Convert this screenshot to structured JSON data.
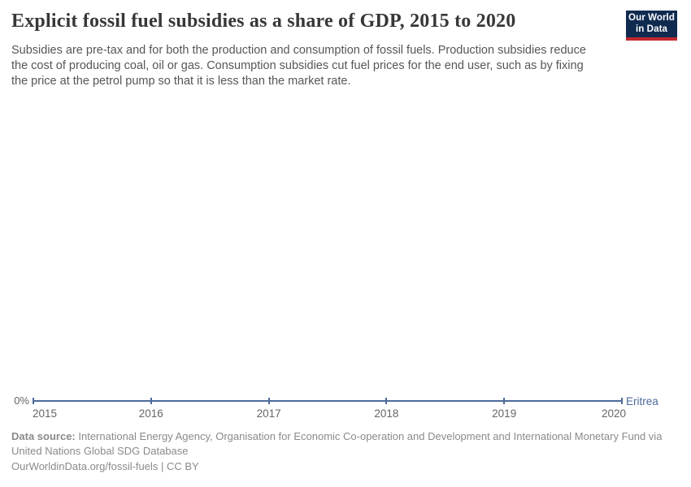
{
  "header": {
    "title": "Explicit fossil fuel subsidies as a share of GDP, 2015 to 2020",
    "subtitle_lines": [
      "Subsidies are pre-tax and for both the production and consumption of fossil fuels. Production subsidies reduce",
      "the cost of producing coal, oil or gas. Consumption subsidies cut fuel prices for the end user, such as by fixing",
      "the price at the petrol pump so that it is less than the market rate."
    ]
  },
  "logo": {
    "line1": "Our World",
    "line2": "in Data"
  },
  "chart_data": {
    "type": "line",
    "title": "Explicit fossil fuel subsidies as a share of GDP, 2015 to 2020",
    "x": [
      2015,
      2016,
      2017,
      2018,
      2019,
      2020
    ],
    "x_tick_labels": [
      "2015",
      "2016",
      "2017",
      "2018",
      "2019",
      "2020"
    ],
    "series": [
      {
        "name": "Eritrea",
        "values": [
          0,
          0,
          0,
          0,
          0,
          0
        ]
      }
    ],
    "unit": "%",
    "ylim": [
      0,
      0
    ],
    "y_tick_labels": [
      "0%"
    ],
    "grid": false,
    "legend_position": "right-of-line-end",
    "xlabel": "",
    "ylabel": ""
  },
  "footer": {
    "data_source_label": "Data source:",
    "data_source_line1_rest": " International Energy Agency, Organisation for Economic Co-operation and Development and International Monetary Fund via",
    "data_source_line2": "United Nations Global SDG Database",
    "link_line": "OurWorldinData.org/fossil-fuels | CC BY"
  },
  "colors": {
    "series": "#4C6A9C",
    "logo_bg": "#102b50",
    "logo_stripe": "#c0282d",
    "title_text": "#373737",
    "subtitle_text": "#565656",
    "axis_text": "#666666",
    "footer_text": "#8a8a8a"
  }
}
